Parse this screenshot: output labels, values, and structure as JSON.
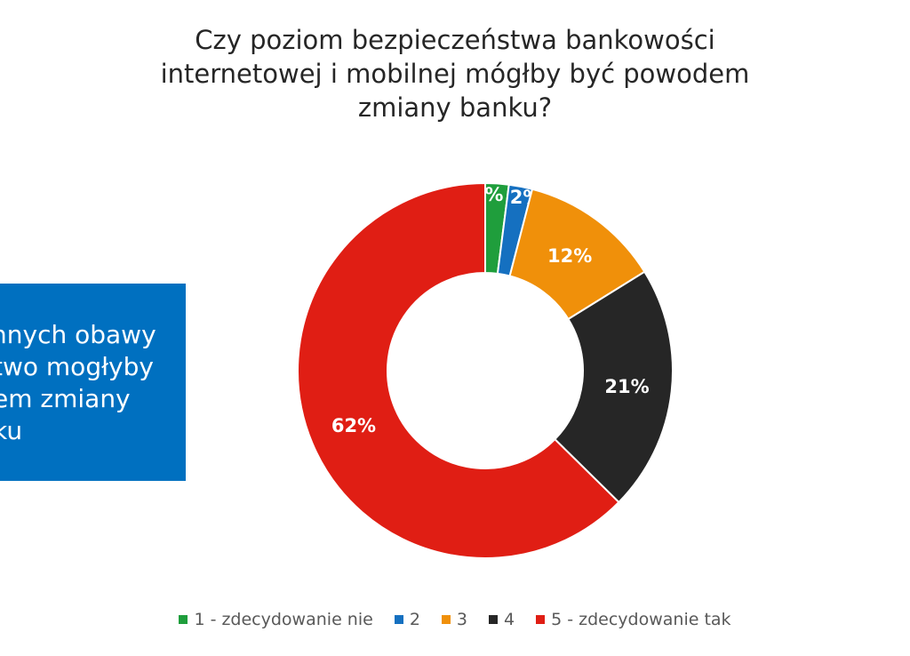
{
  "side_box": {
    "lines": [
      "nnych obawy",
      "two mogłyby",
      "em zmiany",
      "ku"
    ],
    "color": "#0070c0"
  },
  "chart_data": {
    "type": "pie",
    "donut": true,
    "title": "Czy poziom bezpieczeństwa bankowości internetowej i mobilnej mógłby być powodem zmiany banku?",
    "title_lines": [
      "Czy poziom bezpieczeństwa bankowości",
      "internetowej i mobilnej mógłby być powodem",
      "zmiany banku?"
    ],
    "categories": [
      "1 - zdecydowanie nie",
      "2",
      "3",
      "4",
      "5 - zdecydowanie tak"
    ],
    "values": [
      2,
      2,
      12,
      21,
      62
    ],
    "labels": [
      "2%",
      "2%",
      "12%",
      "21%",
      "62%"
    ],
    "colors": [
      "#1f9e3c",
      "#1570c0",
      "#f0900a",
      "#262626",
      "#e01e14"
    ],
    "legend_position": "bottom"
  }
}
